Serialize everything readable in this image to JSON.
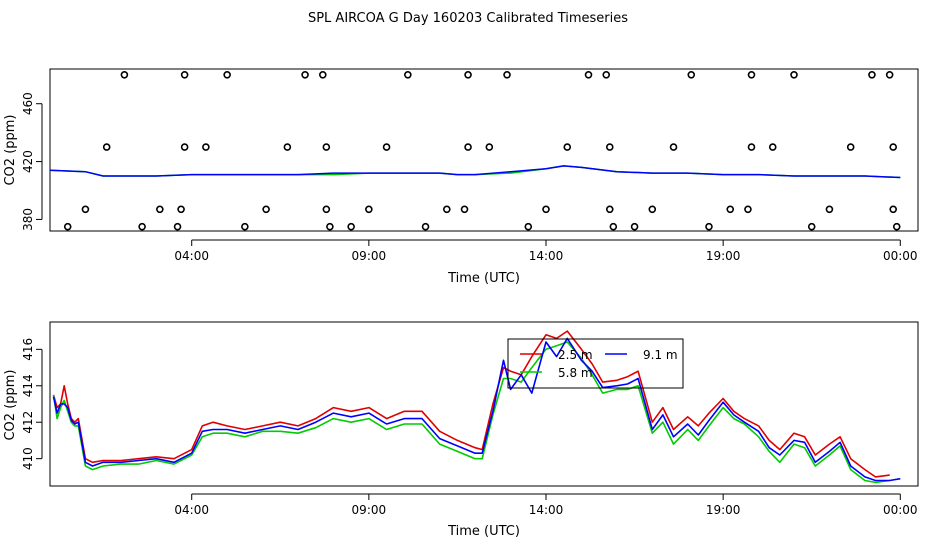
{
  "title": "SPL AIRCOA G  Day 160203  Calibrated Timeseries",
  "chart_data": [
    {
      "type": "scatter",
      "xlabel": "Time (UTC)",
      "ylabel": "CO2 (ppm)",
      "xlim": [
        0.0,
        24.5
      ],
      "ylim": [
        372,
        484
      ],
      "x_ticks": [
        {
          "v": 4,
          "label": "04:00"
        },
        {
          "v": 9,
          "label": "09:00"
        },
        {
          "v": 14,
          "label": "14:00"
        },
        {
          "v": 19,
          "label": "19:00"
        },
        {
          "v": 24,
          "label": "00:00"
        }
      ],
      "y_ticks": [
        380,
        420,
        460
      ],
      "grid": false,
      "colors": {
        "points": "#000000",
        "green": "#00cc00",
        "blue": "#0000ff"
      },
      "points": [
        [
          0.5,
          375
        ],
        [
          1.0,
          387
        ],
        [
          1.6,
          430
        ],
        [
          2.1,
          480
        ],
        [
          2.6,
          375
        ],
        [
          3.1,
          387
        ],
        [
          3.6,
          375
        ],
        [
          3.7,
          387
        ],
        [
          3.8,
          430
        ],
        [
          3.8,
          480
        ],
        [
          4.4,
          430
        ],
        [
          5.0,
          480
        ],
        [
          5.5,
          375
        ],
        [
          6.1,
          387
        ],
        [
          6.7,
          430
        ],
        [
          7.2,
          480
        ],
        [
          7.7,
          480
        ],
        [
          7.8,
          430
        ],
        [
          7.8,
          387
        ],
        [
          7.9,
          375
        ],
        [
          8.5,
          375
        ],
        [
          9.0,
          387
        ],
        [
          9.5,
          430
        ],
        [
          10.1,
          480
        ],
        [
          10.6,
          375
        ],
        [
          11.2,
          387
        ],
        [
          11.7,
          387
        ],
        [
          11.8,
          430
        ],
        [
          11.8,
          480
        ],
        [
          12.4,
          430
        ],
        [
          12.9,
          480
        ],
        [
          13.5,
          375
        ],
        [
          14.0,
          387
        ],
        [
          14.6,
          430
        ],
        [
          15.2,
          480
        ],
        [
          15.7,
          480
        ],
        [
          15.8,
          430
        ],
        [
          15.8,
          387
        ],
        [
          15.9,
          375
        ],
        [
          16.5,
          375
        ],
        [
          17.0,
          387
        ],
        [
          17.6,
          430
        ],
        [
          18.1,
          480
        ],
        [
          18.6,
          375
        ],
        [
          19.2,
          387
        ],
        [
          19.7,
          387
        ],
        [
          19.8,
          430
        ],
        [
          19.8,
          480
        ],
        [
          20.4,
          430
        ],
        [
          21.0,
          480
        ],
        [
          21.5,
          375
        ],
        [
          22.0,
          387
        ],
        [
          22.6,
          430
        ],
        [
          23.2,
          480
        ],
        [
          23.7,
          480
        ],
        [
          23.8,
          430
        ],
        [
          23.8,
          387
        ],
        [
          23.9,
          375
        ]
      ],
      "series": [
        {
          "color": "#00cc00",
          "x": [
            0,
            1,
            1.5,
            2,
            3,
            4,
            5,
            6,
            7,
            8,
            9,
            10,
            11,
            11.5,
            12,
            13,
            14,
            14.5,
            15,
            16,
            17,
            18,
            19,
            20,
            21,
            22,
            23,
            24
          ],
          "values": [
            414,
            413,
            410,
            410,
            410,
            411,
            411,
            411,
            411,
            411,
            412,
            412,
            412,
            411,
            411,
            412,
            415,
            417,
            416,
            413,
            412,
            412,
            411,
            411,
            410,
            410,
            410,
            409
          ]
        },
        {
          "color": "#0000ff",
          "x": [
            0,
            1,
            1.5,
            2,
            3,
            4,
            5,
            6,
            7,
            8,
            9,
            10,
            11,
            11.5,
            12,
            13,
            14,
            14.5,
            15,
            16,
            17,
            18,
            19,
            20,
            21,
            22,
            23,
            24
          ],
          "values": [
            414,
            413,
            410,
            410,
            410,
            411,
            411,
            411,
            411,
            412,
            412,
            412,
            412,
            411,
            411,
            413,
            415,
            417,
            416,
            413,
            412,
            412,
            411,
            411,
            410,
            410,
            410,
            409
          ]
        }
      ]
    },
    {
      "type": "line",
      "xlabel": "Time (UTC)",
      "ylabel": "CO2 (ppm)",
      "xlim": [
        0.0,
        24.5
      ],
      "ylim": [
        408.5,
        417.5
      ],
      "x_ticks": [
        {
          "v": 4,
          "label": "04:00"
        },
        {
          "v": 9,
          "label": "09:00"
        },
        {
          "v": 14,
          "label": "14:00"
        },
        {
          "v": 19,
          "label": "19:00"
        },
        {
          "v": 24,
          "label": "00:00"
        }
      ],
      "y_ticks": [
        410,
        412,
        414,
        416
      ],
      "grid": false,
      "legend": {
        "position": "top-center",
        "entries": [
          {
            "name": "2.5 m",
            "color": "#e00000"
          },
          {
            "name": "5.8 m",
            "color": "#00cc00"
          },
          {
            "name": "9.1 m",
            "color": "#0000ff"
          }
        ]
      },
      "series": [
        {
          "name": "2.5 m",
          "color": "#e00000",
          "x": [
            0.1,
            0.2,
            0.3,
            0.4,
            0.5,
            0.6,
            0.7,
            0.8,
            1.0,
            1.2,
            1.5,
            2.0,
            2.5,
            3.0,
            3.5,
            4.0,
            4.3,
            4.6,
            5.0,
            5.5,
            6.0,
            6.5,
            7.0,
            7.5,
            8.0,
            8.5,
            9.0,
            9.5,
            10.0,
            10.5,
            11.0,
            11.5,
            12.0,
            12.2,
            12.5,
            12.8,
            13.0,
            13.3,
            13.6,
            14.0,
            14.3,
            14.6,
            15.0,
            15.3,
            15.6,
            16.0,
            16.3,
            16.6,
            17.0,
            17.3,
            17.6,
            18.0,
            18.3,
            18.6,
            19.0,
            19.3,
            19.6,
            20.0,
            20.3,
            20.6,
            21.0,
            21.3,
            21.6,
            22.0,
            22.3,
            22.6,
            23.0,
            23.3,
            23.7
          ],
          "values": [
            413.5,
            412.8,
            413.0,
            414.0,
            413.0,
            412.2,
            412.0,
            412.2,
            410.0,
            409.8,
            409.9,
            409.9,
            410.0,
            410.1,
            410.0,
            410.5,
            411.8,
            412.0,
            411.8,
            411.6,
            411.8,
            412.0,
            411.8,
            412.2,
            412.8,
            412.6,
            412.8,
            412.2,
            412.6,
            412.6,
            411.5,
            411.0,
            410.6,
            410.5,
            413.0,
            415.0,
            414.8,
            414.6,
            415.6,
            416.8,
            416.6,
            417.0,
            416.0,
            415.2,
            414.2,
            414.3,
            414.5,
            414.8,
            412.0,
            412.8,
            411.6,
            412.3,
            411.8,
            412.5,
            413.3,
            412.6,
            412.2,
            411.8,
            411.0,
            410.5,
            411.4,
            411.2,
            410.2,
            410.8,
            411.2,
            410.0,
            409.4,
            409.0,
            409.1
          ]
        },
        {
          "name": "5.8 m",
          "color": "#00cc00",
          "x": [
            0.1,
            0.2,
            0.3,
            0.4,
            0.5,
            0.6,
            0.7,
            0.8,
            1.0,
            1.2,
            1.5,
            2.0,
            2.5,
            3.0,
            3.5,
            4.0,
            4.3,
            4.6,
            5.0,
            5.5,
            6.0,
            6.5,
            7.0,
            7.5,
            8.0,
            8.5,
            9.0,
            9.5,
            10.0,
            10.5,
            11.0,
            11.5,
            12.0,
            12.2,
            12.5,
            12.8,
            13.0,
            13.3,
            13.6,
            14.0,
            14.3,
            14.6,
            15.0,
            15.3,
            15.6,
            16.0,
            16.3,
            16.6,
            17.0,
            17.3,
            17.6,
            18.0,
            18.3,
            18.6,
            19.0,
            19.3,
            19.6,
            20.0,
            20.3,
            20.6,
            21.0,
            21.3,
            21.6,
            22.0,
            22.3,
            22.6,
            23.0,
            23.3,
            23.7
          ],
          "values": [
            413.5,
            412.2,
            412.8,
            413.2,
            412.6,
            412.0,
            411.8,
            411.8,
            409.6,
            409.4,
            409.6,
            409.7,
            409.7,
            409.9,
            409.7,
            410.2,
            411.2,
            411.4,
            411.4,
            411.2,
            411.5,
            411.5,
            411.4,
            411.7,
            412.2,
            412.0,
            412.2,
            411.6,
            411.9,
            411.9,
            410.8,
            410.4,
            410.0,
            410.0,
            412.4,
            414.4,
            414.4,
            414.2,
            415.0,
            416.0,
            416.2,
            416.4,
            415.5,
            414.6,
            413.6,
            413.8,
            413.8,
            414.0,
            411.4,
            412.0,
            410.8,
            411.6,
            411.0,
            411.8,
            412.8,
            412.2,
            411.9,
            411.2,
            410.4,
            409.8,
            410.8,
            410.6,
            409.6,
            410.2,
            410.7,
            409.4,
            408.8,
            408.7,
            408.8
          ]
        },
        {
          "name": "9.1 m",
          "color": "#0000ff",
          "x": [
            0.1,
            0.2,
            0.3,
            0.4,
            0.5,
            0.6,
            0.7,
            0.8,
            1.0,
            1.2,
            1.5,
            2.0,
            2.5,
            3.0,
            3.5,
            4.0,
            4.3,
            4.6,
            5.0,
            5.5,
            6.0,
            6.5,
            7.0,
            7.5,
            8.0,
            8.5,
            9.0,
            9.5,
            10.0,
            10.5,
            11.0,
            11.5,
            12.0,
            12.2,
            12.5,
            12.8,
            13.0,
            13.3,
            13.6,
            14.0,
            14.3,
            14.6,
            15.0,
            15.3,
            15.6,
            16.0,
            16.3,
            16.6,
            17.0,
            17.3,
            17.6,
            18.0,
            18.3,
            18.6,
            19.0,
            19.3,
            19.6,
            20.0,
            20.3,
            20.6,
            21.0,
            21.3,
            21.6,
            22.0,
            22.3,
            22.6,
            23.0,
            23.3,
            23.7,
            24.0
          ],
          "values": [
            413.4,
            412.5,
            413.0,
            413.0,
            412.8,
            412.1,
            411.9,
            412.0,
            409.8,
            409.6,
            409.8,
            409.8,
            409.9,
            410.0,
            409.8,
            410.3,
            411.5,
            411.6,
            411.6,
            411.4,
            411.6,
            411.8,
            411.6,
            412.0,
            412.5,
            412.3,
            412.5,
            411.9,
            412.2,
            412.2,
            411.1,
            410.7,
            410.3,
            410.3,
            412.6,
            415.4,
            413.8,
            414.6,
            413.6,
            416.4,
            415.6,
            416.6,
            415.4,
            414.8,
            413.9,
            414.0,
            414.1,
            414.4,
            411.6,
            412.4,
            411.2,
            411.9,
            411.3,
            412.1,
            413.1,
            412.4,
            412.0,
            411.5,
            410.6,
            410.2,
            411.0,
            410.9,
            409.8,
            410.4,
            410.9,
            409.6,
            409.0,
            408.8,
            408.8,
            408.9
          ]
        }
      ]
    }
  ]
}
